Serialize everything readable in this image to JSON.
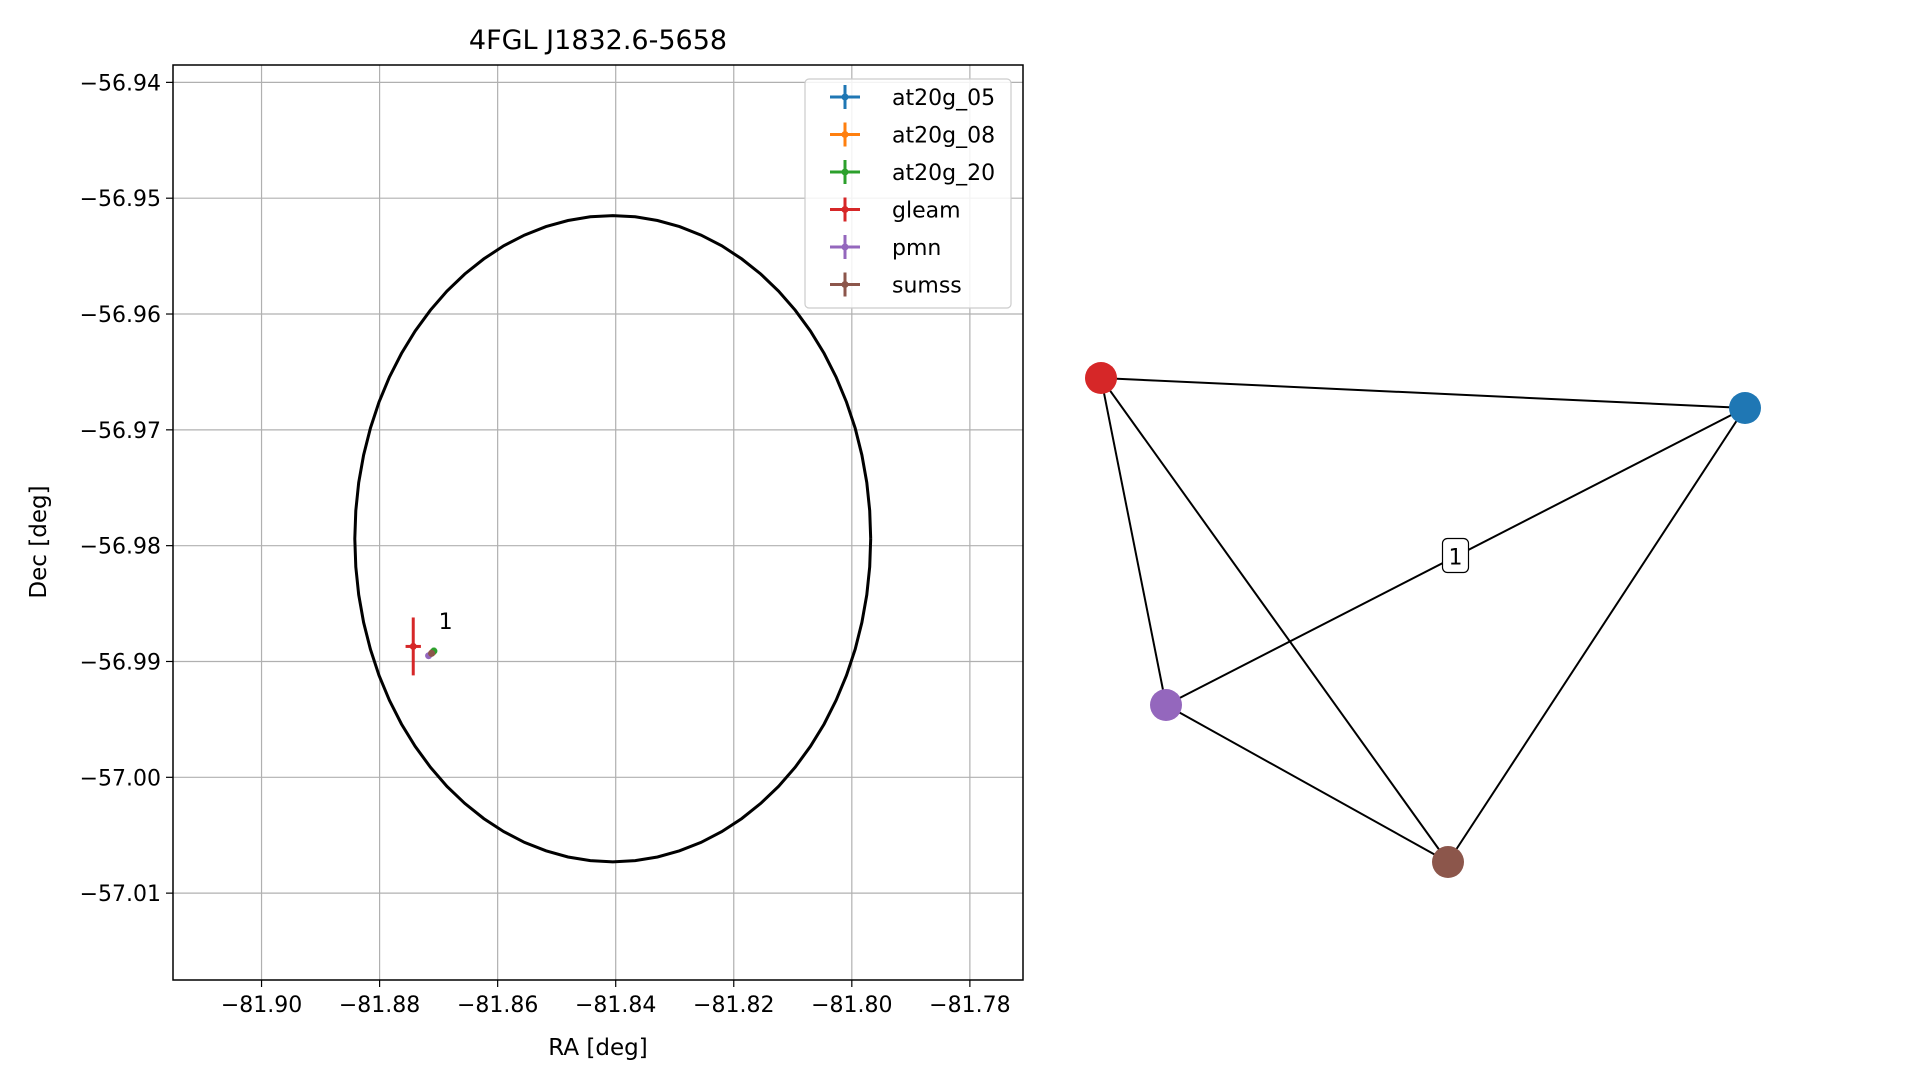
{
  "chart_data": [
    {
      "type": "scatter",
      "title": "4FGL J1832.6-5658",
      "xlabel": "RA [deg]",
      "ylabel": "Dec [deg]",
      "xlim": [
        -81.915,
        -81.771
      ],
      "ylim": [
        -57.0175,
        -56.9385
      ],
      "x_ticks": [
        -81.9,
        -81.88,
        -81.86,
        -81.84,
        -81.82,
        -81.8,
        -81.78
      ],
      "x_tick_labels": [
        "−81.90",
        "−81.88",
        "−81.86",
        "−81.84",
        "−81.82",
        "−81.80",
        "−81.78"
      ],
      "y_ticks": [
        -56.94,
        -56.95,
        -56.96,
        -56.97,
        -56.98,
        -56.99,
        -57.0,
        -57.01
      ],
      "y_tick_labels": [
        "−56.94",
        "−56.95",
        "−56.96",
        "−56.97",
        "−56.98",
        "−56.99",
        "−57.00",
        "−57.01"
      ],
      "grid": true,
      "legend_position": "top-right",
      "series": [
        {
          "name": "at20g_05",
          "color": "#1f77b4",
          "x": -81.871,
          "y": -56.9892,
          "xerr": 0.0003,
          "yerr": 0.0003
        },
        {
          "name": "at20g_08",
          "color": "#ff7f0e",
          "x": -81.871,
          "y": -56.9892,
          "xerr": 0.0003,
          "yerr": 0.0003
        },
        {
          "name": "at20g_20",
          "color": "#2ca02c",
          "x": -81.8708,
          "y": -56.9891,
          "xerr": 0.0004,
          "yerr": 0.0003
        },
        {
          "name": "gleam",
          "color": "#d62728",
          "x": -81.8743,
          "y": -56.9887,
          "xerr": 0.0013,
          "yerr": 0.0025
        },
        {
          "name": "pmn",
          "color": "#9467bd",
          "x": -81.8717,
          "y": -56.9895,
          "xerr": 0.0002,
          "yerr": 0.0002
        },
        {
          "name": "sumss",
          "color": "#8c564b",
          "x": -81.8712,
          "y": -56.9893,
          "xerr": 0.0002,
          "yerr": 0.0002
        }
      ],
      "ellipse": {
        "center_x": -81.8405,
        "center_y": -56.9794,
        "semi_x": 0.0437,
        "semi_y": 0.0279,
        "color": "#000000"
      },
      "annotations": [
        {
          "text": "1",
          "x": -81.87,
          "y": -56.9872
        }
      ]
    },
    {
      "type": "network",
      "nodes": [
        {
          "id": "gleam",
          "color": "#d62728"
        },
        {
          "id": "at20g",
          "color": "#1f77b4"
        },
        {
          "id": "pmn",
          "color": "#9467bd"
        },
        {
          "id": "sumss",
          "color": "#8c564b"
        }
      ],
      "edges": [
        {
          "source": "gleam",
          "target": "at20g",
          "label": ""
        },
        {
          "source": "gleam",
          "target": "pmn",
          "label": ""
        },
        {
          "source": "gleam",
          "target": "sumss",
          "label": ""
        },
        {
          "source": "at20g",
          "target": "pmn",
          "label": "1"
        },
        {
          "source": "at20g",
          "target": "sumss",
          "label": ""
        },
        {
          "source": "pmn",
          "target": "sumss",
          "label": ""
        }
      ]
    }
  ]
}
